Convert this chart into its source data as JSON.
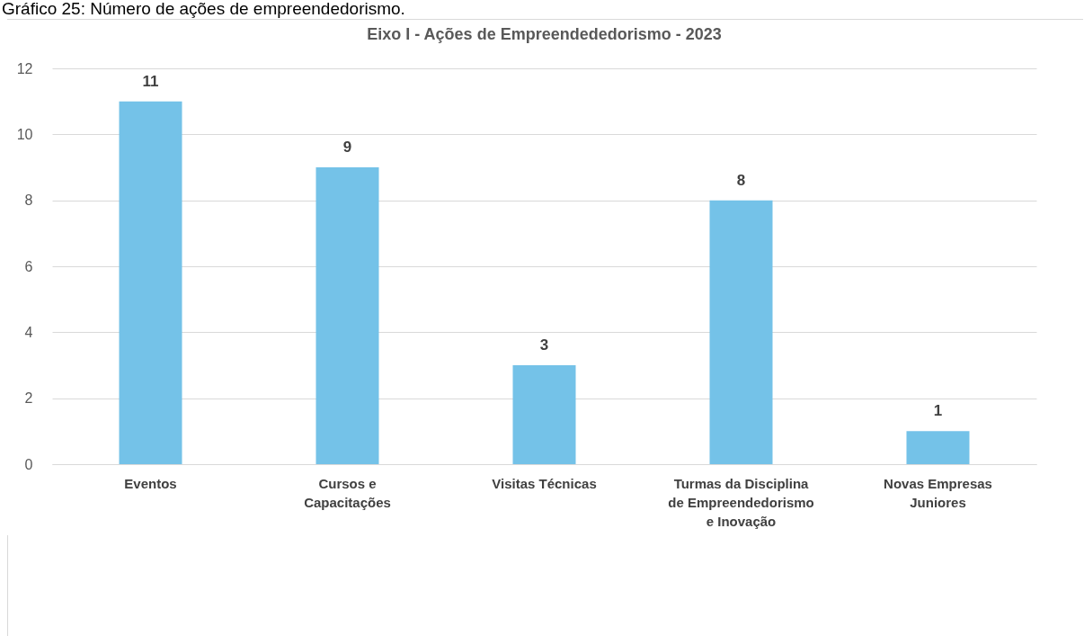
{
  "chart_data": {
    "type": "bar",
    "title": "Eixo I -  Ações de Empreendededorismo - 2023",
    "annotations": [
      "Gráfico 25: Número de ações de empreendedorismo."
    ],
    "categories": [
      "Eventos",
      "Cursos e Capacitações",
      "Visitas Técnicas",
      "Turmas da Disciplina de Empreendedorismo e Inovação",
      "Novas Empresas Juniores"
    ],
    "values": [
      11,
      9,
      3,
      8,
      1
    ],
    "color": "#74c2e8",
    "ylim": [
      0,
      12
    ],
    "yticks": [
      0,
      2,
      4,
      6,
      8,
      10,
      12
    ],
    "grid": "y",
    "data_labels": true
  }
}
